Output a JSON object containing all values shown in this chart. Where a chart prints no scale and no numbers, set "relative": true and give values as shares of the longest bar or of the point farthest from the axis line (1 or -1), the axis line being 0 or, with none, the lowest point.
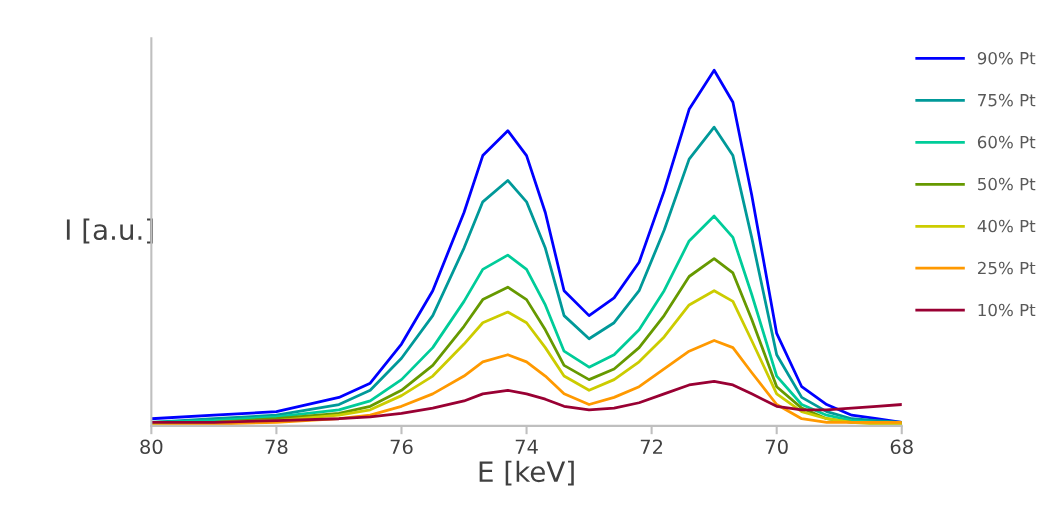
{
  "chart_data": {
    "type": "line",
    "relative": true,
    "xlabel": "E [keV]",
    "ylabel": "I [a.u.]",
    "x": [
      80,
      79,
      78,
      77,
      76.5,
      76,
      75.5,
      75,
      74.7,
      74.3,
      74,
      73.7,
      73.4,
      73,
      72.6,
      72.2,
      71.8,
      71.4,
      71,
      70.7,
      70.4,
      70,
      69.6,
      69.2,
      68.8,
      68.4,
      68
    ],
    "xlim": [
      80,
      68
    ],
    "xticks": [
      80,
      78,
      76,
      74,
      72,
      70,
      68
    ],
    "grid": false,
    "legend": "right",
    "marker": "none",
    "line_style": "solid",
    "series": [
      {
        "name": "90% Pt",
        "color": "#0000ff",
        "values": [
          0.02,
          0.03,
          0.04,
          0.08,
          0.12,
          0.23,
          0.38,
          0.6,
          0.76,
          0.83,
          0.76,
          0.6,
          0.38,
          0.31,
          0.36,
          0.46,
          0.66,
          0.89,
          1,
          0.91,
          0.65,
          0.26,
          0.11,
          0.06,
          0.03,
          0.02,
          0.01
        ]
      },
      {
        "name": "75% Pt",
        "color": "#009999",
        "values": [
          0.01,
          0.02,
          0.03,
          0.06,
          0.1,
          0.19,
          0.31,
          0.5,
          0.63,
          0.69,
          0.63,
          0.5,
          0.31,
          0.245,
          0.29,
          0.38,
          0.55,
          0.75,
          0.84,
          0.76,
          0.53,
          0.2,
          0.08,
          0.04,
          0.02,
          0.015,
          0.01
        ]
      },
      {
        "name": "60% Pt",
        "color": "#00cc99",
        "values": [
          0.01,
          0.015,
          0.025,
          0.045,
          0.07,
          0.13,
          0.22,
          0.35,
          0.44,
          0.48,
          0.44,
          0.34,
          0.21,
          0.165,
          0.2,
          0.27,
          0.38,
          0.52,
          0.59,
          0.53,
          0.37,
          0.14,
          0.06,
          0.03,
          0.015,
          0.01,
          0.01
        ]
      },
      {
        "name": "50% Pt",
        "color": "#669900",
        "values": [
          0.005,
          0.01,
          0.02,
          0.035,
          0.055,
          0.1,
          0.17,
          0.28,
          0.355,
          0.39,
          0.355,
          0.27,
          0.17,
          0.13,
          0.16,
          0.22,
          0.31,
          0.42,
          0.47,
          0.43,
          0.3,
          0.11,
          0.05,
          0.02,
          0.01,
          0.01,
          0.005
        ]
      },
      {
        "name": "40% Pt",
        "color": "#cccc00",
        "values": [
          0.005,
          0.01,
          0.015,
          0.03,
          0.045,
          0.085,
          0.14,
          0.23,
          0.29,
          0.32,
          0.29,
          0.22,
          0.14,
          0.1,
          0.13,
          0.18,
          0.25,
          0.34,
          0.38,
          0.35,
          0.24,
          0.09,
          0.04,
          0.02,
          0.01,
          0.005,
          0.005
        ]
      },
      {
        "name": "25% Pt",
        "color": "#ff9900",
        "values": [
          0.0,
          0.005,
          0.01,
          0.02,
          0.03,
          0.055,
          0.09,
          0.14,
          0.18,
          0.2,
          0.18,
          0.14,
          0.09,
          0.06,
          0.08,
          0.11,
          0.16,
          0.21,
          0.24,
          0.22,
          0.15,
          0.06,
          0.02,
          0.01,
          0.01,
          0.01,
          0.01
        ]
      },
      {
        "name": "10% Pt",
        "color": "#990033",
        "values": [
          0.01,
          0.01,
          0.015,
          0.02,
          0.025,
          0.035,
          0.05,
          0.07,
          0.09,
          0.1,
          0.09,
          0.075,
          0.055,
          0.045,
          0.05,
          0.065,
          0.09,
          0.115,
          0.125,
          0.115,
          0.09,
          0.055,
          0.045,
          0.045,
          0.05,
          0.055,
          0.06
        ]
      }
    ]
  }
}
